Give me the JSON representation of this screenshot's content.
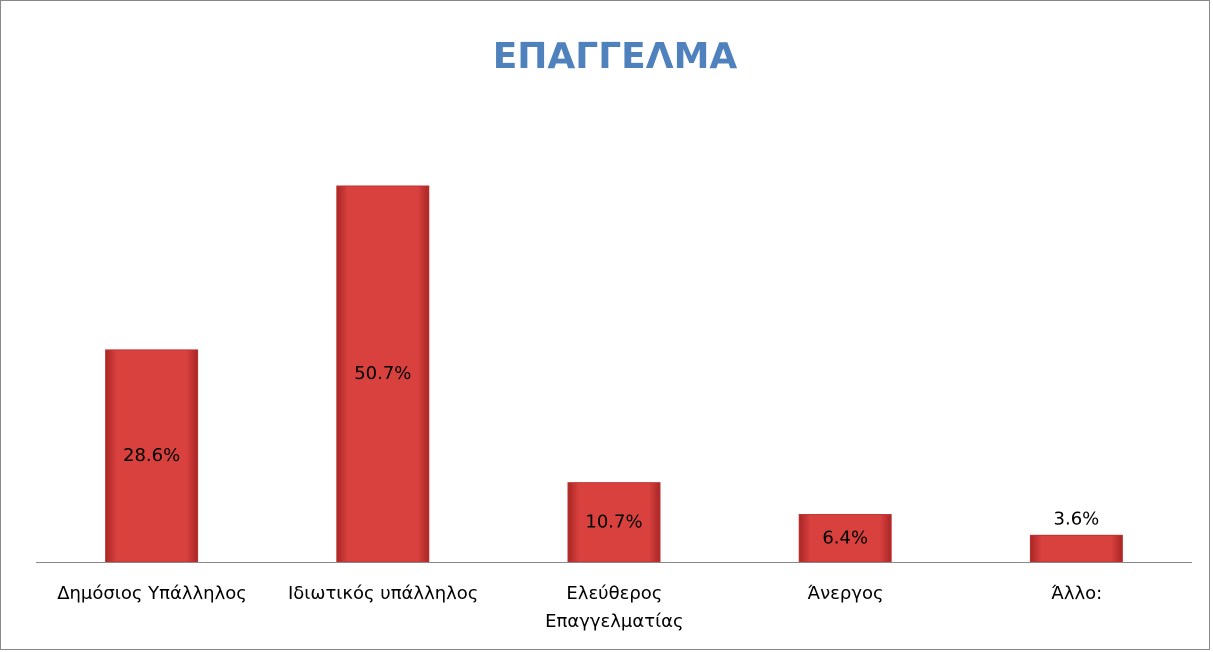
{
  "chart_data": {
    "type": "bar",
    "title": "ΕΠΑΓΓΕΛΜΑ",
    "categories": [
      "Δημόσιος Υπάλληλος",
      "Ιδιωτικός υπάλληλος",
      "Ελεύθερος Επαγγελματίας",
      "Άνεργος",
      "Άλλο:"
    ],
    "values": [
      28.6,
      50.7,
      10.7,
      6.4,
      3.6
    ],
    "value_labels": [
      "28.6%",
      "50.7%",
      "10.7%",
      "6.4%",
      "3.6%"
    ],
    "color": "#d9413f"
  }
}
